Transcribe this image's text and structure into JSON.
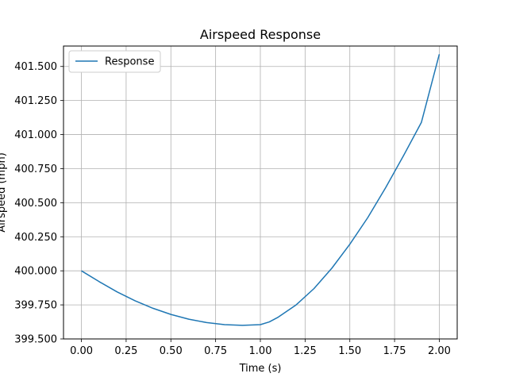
{
  "chart_data": {
    "type": "line",
    "title": "Airspeed Response",
    "xlabel": "Time (s)",
    "ylabel": "Airspeed (mph)",
    "xlim": [
      -0.1,
      2.1
    ],
    "ylim": [
      399.5,
      401.65
    ],
    "xticks": [
      0.0,
      0.25,
      0.5,
      0.75,
      1.0,
      1.25,
      1.5,
      1.75,
      2.0
    ],
    "xtick_labels": [
      "0.00",
      "0.25",
      "0.50",
      "0.75",
      "1.00",
      "1.25",
      "1.50",
      "1.75",
      "2.00"
    ],
    "yticks": [
      399.5,
      399.75,
      400.0,
      400.25,
      400.5,
      400.75,
      401.0,
      401.25,
      401.5
    ],
    "ytick_labels": [
      "399.500",
      "399.750",
      "400.000",
      "400.250",
      "400.500",
      "400.750",
      "401.000",
      "401.250",
      "401.500"
    ],
    "grid": true,
    "legend_position": "upper-left",
    "series": [
      {
        "name": "Response",
        "color": "#1f77b4",
        "x": [
          0.0,
          0.1,
          0.2,
          0.3,
          0.4,
          0.5,
          0.6,
          0.7,
          0.8,
          0.9,
          1.0,
          1.05,
          1.1,
          1.2,
          1.3,
          1.4,
          1.5,
          1.6,
          1.7,
          1.8,
          1.9,
          2.0
        ],
        "y": [
          400.0,
          399.92,
          399.845,
          399.78,
          399.725,
          399.68,
          399.645,
          399.62,
          399.605,
          399.6,
          399.605,
          399.625,
          399.66,
          399.75,
          399.87,
          400.02,
          400.195,
          400.39,
          400.61,
          400.845,
          401.09,
          401.59
        ]
      }
    ]
  }
}
